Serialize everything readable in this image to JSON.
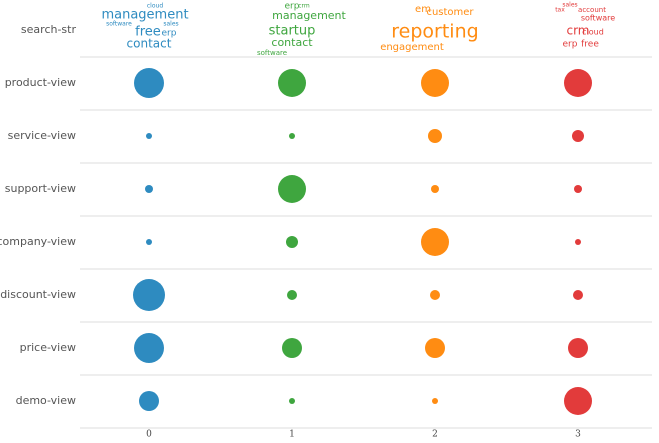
{
  "chart_data": {
    "type": "bubble",
    "wordcloud_label": "search-str",
    "categories": [
      "product-view",
      "service-view",
      "support-view",
      "company-view",
      "discount-view",
      "price-view",
      "demo-view"
    ],
    "xticks": [
      0,
      1,
      2,
      3
    ],
    "series": [
      {
        "color": "#2e8bc0",
        "values": [
          15,
          3,
          4,
          3,
          16,
          15,
          10
        ],
        "words": [
          {
            "text": "management",
            "weight": 13
          },
          {
            "text": "free",
            "weight": 13
          },
          {
            "text": "erp",
            "weight": 9
          },
          {
            "text": "contact",
            "weight": 12
          },
          {
            "text": "software",
            "weight": 6
          },
          {
            "text": "sales",
            "weight": 6
          },
          {
            "text": "cloud",
            "weight": 6
          }
        ]
      },
      {
        "color": "#3fa63f",
        "values": [
          14,
          3,
          14,
          6,
          5,
          10,
          3
        ],
        "words": [
          {
            "text": "management",
            "weight": 11
          },
          {
            "text": "startup",
            "weight": 13
          },
          {
            "text": "contact",
            "weight": 11
          },
          {
            "text": "software",
            "weight": 7
          },
          {
            "text": "erp",
            "weight": 9
          },
          {
            "text": "crm",
            "weight": 6
          }
        ]
      },
      {
        "color": "#ff8c12",
        "values": [
          14,
          7,
          4,
          14,
          5,
          10,
          3
        ],
        "words": [
          {
            "text": "reporting",
            "weight": 19
          },
          {
            "text": "customer",
            "weight": 10
          },
          {
            "text": "engagement",
            "weight": 10
          },
          {
            "text": "em",
            "weight": 10
          }
        ]
      },
      {
        "color": "#e23b3b",
        "values": [
          14,
          6,
          4,
          3,
          5,
          10,
          14
        ],
        "words": [
          {
            "text": "crm",
            "weight": 12
          },
          {
            "text": "cloud",
            "weight": 8
          },
          {
            "text": "account",
            "weight": 7
          },
          {
            "text": "software",
            "weight": 8
          },
          {
            "text": "erp",
            "weight": 9
          },
          {
            "text": "free",
            "weight": 9
          },
          {
            "text": "tax",
            "weight": 6
          },
          {
            "text": "sales",
            "weight": 6
          }
        ]
      }
    ]
  }
}
